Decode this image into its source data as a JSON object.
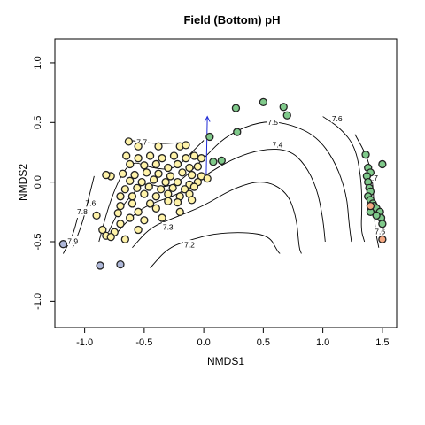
{
  "chart_data": {
    "type": "scatter",
    "title": "Field (Bottom) pH",
    "xlabel": "NMDS1",
    "ylabel": "NMDS2",
    "xlim": [
      -1.25,
      1.62
    ],
    "ylim": [
      -1.22,
      1.2
    ],
    "xticks": [
      -1.0,
      -0.5,
      0.0,
      0.5,
      1.0,
      1.5
    ],
    "xtick_labels": [
      "-1.0",
      "-0.5",
      "0.0",
      "0.5",
      "1.0",
      "1.5"
    ],
    "yticks": [
      -1.0,
      -0.5,
      0.0,
      0.5,
      1.0
    ],
    "ytick_labels": [
      "-1.0",
      "-0.5",
      "0.0",
      "0.5",
      "1.0"
    ],
    "grid": false,
    "legend": "none",
    "colors": {
      "yellow": "#fff3a8",
      "green": "#7fc98a",
      "blue": "#aeb7d8",
      "orange": "#f5a882",
      "point_edge": "#222222",
      "arrow": "#1f2bd6",
      "contour": "#000000"
    },
    "contours": [
      {
        "level": "7.2",
        "path": [
          [
            -0.45,
            -0.72
          ],
          [
            -0.3,
            -0.55
          ],
          [
            -0.1,
            -0.48
          ],
          [
            0.1,
            -0.43
          ],
          [
            0.35,
            -0.42
          ],
          [
            0.55,
            -0.45
          ],
          [
            0.62,
            -0.58
          ],
          [
            0.64,
            -0.6
          ]
        ],
        "label_at": [
          -0.12,
          -0.53
        ]
      },
      {
        "level": "7.3",
        "path": [
          [
            -0.6,
            -0.55
          ],
          [
            -0.45,
            -0.38
          ],
          [
            -0.25,
            -0.3
          ],
          [
            0.0,
            -0.2
          ],
          [
            0.25,
            -0.05
          ],
          [
            0.5,
            0.02
          ],
          [
            0.7,
            -0.08
          ],
          [
            0.78,
            -0.3
          ],
          [
            0.8,
            -0.55
          ],
          [
            0.82,
            -0.6
          ]
        ],
        "label_at": [
          -0.3,
          -0.38
        ]
      },
      {
        "level": "7.4",
        "path": [
          [
            -0.75,
            -0.45
          ],
          [
            -0.6,
            -0.28
          ],
          [
            -0.45,
            -0.18
          ],
          [
            -0.2,
            -0.1
          ],
          [
            0.0,
            0.05
          ],
          [
            0.25,
            0.2
          ],
          [
            0.5,
            0.28
          ],
          [
            0.72,
            0.27
          ],
          [
            0.85,
            0.15
          ],
          [
            0.95,
            -0.05
          ],
          [
            1.0,
            -0.3
          ],
          [
            1.02,
            -0.5
          ]
        ],
        "label_at": [
          0.62,
          0.31
        ]
      },
      {
        "level": "7.5",
        "path": [
          [
            -0.8,
            -0.42
          ],
          [
            -0.72,
            -0.25
          ],
          [
            -0.6,
            -0.1
          ],
          [
            -0.5,
            0.0
          ],
          [
            -0.35,
            -0.05
          ],
          [
            -0.2,
            0.0
          ],
          [
            0.0,
            0.2
          ],
          [
            0.2,
            0.4
          ],
          [
            0.5,
            0.52
          ],
          [
            0.75,
            0.48
          ],
          [
            0.95,
            0.38
          ],
          [
            1.1,
            0.18
          ],
          [
            1.2,
            -0.1
          ],
          [
            1.22,
            -0.35
          ],
          [
            1.24,
            -0.5
          ]
        ],
        "label_at": [
          0.58,
          0.5
        ]
      },
      {
        "level": "7.6",
        "path": [
          [
            -0.88,
            -0.5
          ],
          [
            -0.8,
            -0.2
          ],
          [
            -0.7,
            0.05
          ],
          [
            -0.6,
            0.18
          ],
          [
            -0.45,
            0.12
          ],
          [
            -0.25,
            0.1
          ],
          [
            -0.1,
            0.25
          ],
          [
            0.0,
            0.35
          ]
        ],
        "label_at": [
          -0.95,
          -0.18
        ]
      },
      {
        "level": "7.6",
        "path": [
          [
            1.0,
            0.55
          ],
          [
            1.15,
            0.45
          ],
          [
            1.27,
            0.3
          ],
          [
            1.32,
            0.05
          ],
          [
            1.33,
            -0.2
          ],
          [
            1.32,
            -0.4
          ],
          [
            1.35,
            -0.5
          ]
        ],
        "label_at": [
          1.12,
          0.53
        ]
      },
      {
        "level": "7.7",
        "path": [
          [
            -0.62,
            0.35
          ],
          [
            -0.4,
            0.32
          ],
          [
            -0.2,
            0.33
          ]
        ],
        "label_at": [
          -0.52,
          0.33
        ]
      },
      {
        "level": "7.7",
        "path": [
          [
            1.27,
            0.4
          ],
          [
            1.38,
            0.2
          ],
          [
            1.42,
            0.0
          ],
          [
            1.43,
            -0.2
          ],
          [
            1.44,
            -0.4
          ],
          [
            1.47,
            -0.55
          ]
        ],
        "label_at": [
          1.42,
          0.03
        ]
      },
      {
        "level": "7.8",
        "path": [
          [
            -1.1,
            -0.55
          ],
          [
            -1.02,
            -0.35
          ],
          [
            -0.97,
            -0.15
          ],
          [
            -0.92,
            0.05
          ]
        ],
        "label_at": [
          -1.02,
          -0.25
        ]
      },
      {
        "level": "7.9",
        "path": [
          [
            -1.18,
            -0.6
          ],
          [
            -1.1,
            -0.45
          ],
          [
            -1.06,
            -0.3
          ]
        ],
        "label_at": [
          -1.1,
          -0.5
        ]
      },
      {
        "level": "7.6",
        "path": [
          [
            1.45,
            -0.2
          ],
          [
            1.48,
            -0.35
          ],
          [
            1.5,
            -0.5
          ]
        ],
        "label_at": [
          1.48,
          -0.42
        ]
      }
    ],
    "arrow": {
      "from": [
        0.02,
        0.02
      ],
      "to": [
        0.03,
        0.55
      ]
    },
    "series": [
      {
        "color_key": "yellow",
        "points": [
          [
            -0.63,
            0.34
          ],
          [
            -0.55,
            0.3
          ],
          [
            -0.38,
            0.3
          ],
          [
            -0.2,
            0.3
          ],
          [
            -0.15,
            0.31
          ],
          [
            -0.65,
            0.22
          ],
          [
            -0.55,
            0.2
          ],
          [
            -0.45,
            0.22
          ],
          [
            -0.35,
            0.2
          ],
          [
            -0.25,
            0.22
          ],
          [
            -0.15,
            0.2
          ],
          [
            -0.08,
            0.22
          ],
          [
            -0.02,
            0.2
          ],
          [
            -0.62,
            0.15
          ],
          [
            -0.5,
            0.14
          ],
          [
            -0.4,
            0.15
          ],
          [
            -0.3,
            0.12
          ],
          [
            -0.22,
            0.15
          ],
          [
            -0.12,
            0.12
          ],
          [
            -0.05,
            0.13
          ],
          [
            -0.68,
            0.07
          ],
          [
            -0.58,
            0.06
          ],
          [
            -0.48,
            0.08
          ],
          [
            -0.38,
            0.07
          ],
          [
            -0.28,
            0.05
          ],
          [
            -0.18,
            0.08
          ],
          [
            -0.1,
            0.06
          ],
          [
            -0.02,
            0.05
          ],
          [
            -0.62,
            0.01
          ],
          [
            -0.52,
            0.0
          ],
          [
            -0.42,
            0.02
          ],
          [
            -0.32,
            0.0
          ],
          [
            -0.22,
            0.0
          ],
          [
            -0.12,
            -0.02
          ],
          [
            -0.05,
            0.0
          ],
          [
            -0.66,
            -0.06
          ],
          [
            -0.56,
            -0.05
          ],
          [
            -0.46,
            -0.04
          ],
          [
            -0.36,
            -0.06
          ],
          [
            -0.26,
            -0.05
          ],
          [
            -0.16,
            -0.06
          ],
          [
            -0.08,
            -0.04
          ],
          [
            -0.7,
            -0.12
          ],
          [
            -0.6,
            -0.12
          ],
          [
            -0.5,
            -0.1
          ],
          [
            -0.4,
            -0.12
          ],
          [
            -0.3,
            -0.1
          ],
          [
            -0.2,
            -0.12
          ],
          [
            -0.12,
            -0.1
          ],
          [
            -0.6,
            -0.18
          ],
          [
            -0.45,
            -0.18
          ],
          [
            -0.3,
            -0.16
          ],
          [
            -0.78,
            0.05
          ],
          [
            -0.82,
            0.06
          ],
          [
            -0.7,
            -0.2
          ],
          [
            -0.55,
            -0.25
          ],
          [
            -0.4,
            -0.22
          ],
          [
            -0.22,
            -0.17
          ],
          [
            -0.1,
            -0.15
          ],
          [
            -0.72,
            -0.26
          ],
          [
            -0.62,
            -0.3
          ],
          [
            -0.5,
            -0.32
          ],
          [
            -0.35,
            -0.3
          ],
          [
            -0.2,
            -0.25
          ],
          [
            -0.9,
            -0.28
          ],
          [
            -0.75,
            -0.42
          ],
          [
            -0.66,
            -0.48
          ],
          [
            -0.82,
            -0.45
          ],
          [
            -0.7,
            -0.35
          ],
          [
            -0.55,
            -0.4
          ],
          [
            -0.85,
            -0.4
          ],
          [
            -0.78,
            -0.46
          ],
          [
            0.03,
            0.03
          ]
        ]
      },
      {
        "color_key": "green",
        "points": [
          [
            0.05,
            0.38
          ],
          [
            0.27,
            0.62
          ],
          [
            0.5,
            0.67
          ],
          [
            0.67,
            0.63
          ],
          [
            0.7,
            0.56
          ],
          [
            0.28,
            0.42
          ],
          [
            0.08,
            0.17
          ],
          [
            0.15,
            0.18
          ],
          [
            1.36,
            0.23
          ],
          [
            1.38,
            0.12
          ],
          [
            1.4,
            0.08
          ],
          [
            1.5,
            0.15
          ],
          [
            1.37,
            0.05
          ],
          [
            1.38,
            0.0
          ],
          [
            1.39,
            -0.05
          ],
          [
            1.4,
            -0.08
          ],
          [
            1.38,
            -0.12
          ],
          [
            1.4,
            -0.15
          ],
          [
            1.42,
            -0.18
          ],
          [
            1.43,
            -0.2
          ],
          [
            1.45,
            -0.22
          ],
          [
            1.48,
            -0.25
          ],
          [
            1.49,
            -0.3
          ],
          [
            1.5,
            -0.35
          ],
          [
            1.4,
            -0.25
          ],
          [
            1.45,
            -0.28
          ]
        ]
      },
      {
        "color_key": "blue",
        "points": [
          [
            -1.18,
            -0.52
          ],
          [
            -0.87,
            -0.7
          ],
          [
            -0.7,
            -0.69
          ]
        ]
      },
      {
        "color_key": "orange",
        "points": [
          [
            1.5,
            -0.48
          ],
          [
            1.4,
            -0.2
          ]
        ]
      }
    ]
  }
}
